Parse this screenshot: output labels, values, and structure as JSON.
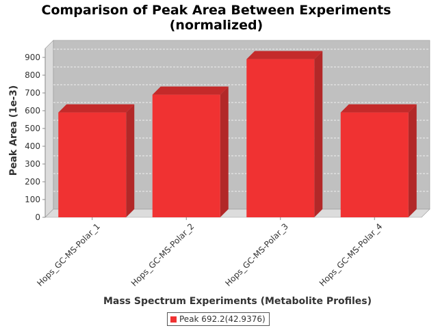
{
  "chart_data": {
    "type": "bar",
    "title": "Comparison of Peak Area Between Experiments",
    "subtitle": "(normalized)",
    "xlabel": "Mass Spectrum Experiments (Metabolite Profiles)",
    "ylabel": "Peak Area (1e-3)",
    "categories": [
      "Hops_GC-MS-Polar_1",
      "Hops_GC-MS-Polar_2",
      "Hops_GC-MS-Polar_3",
      "Hops_GC-MS-Polar_4"
    ],
    "series": [
      {
        "name": "Peak 692.2(42.9376)",
        "values": [
          590,
          690,
          890,
          590
        ]
      }
    ],
    "ylim": [
      0,
      950
    ],
    "yticks": [
      "0",
      "100",
      "200",
      "300",
      "400",
      "500",
      "600",
      "700",
      "800",
      "900"
    ],
    "grid": true,
    "legend_position": "bottom-center",
    "colors": {
      "bar_front": "#f03232",
      "bar_side": "#b22828",
      "bar_top": "#c42a2a",
      "plot_bg": "#c0c0c0",
      "wall": "#dcdcdc"
    }
  }
}
